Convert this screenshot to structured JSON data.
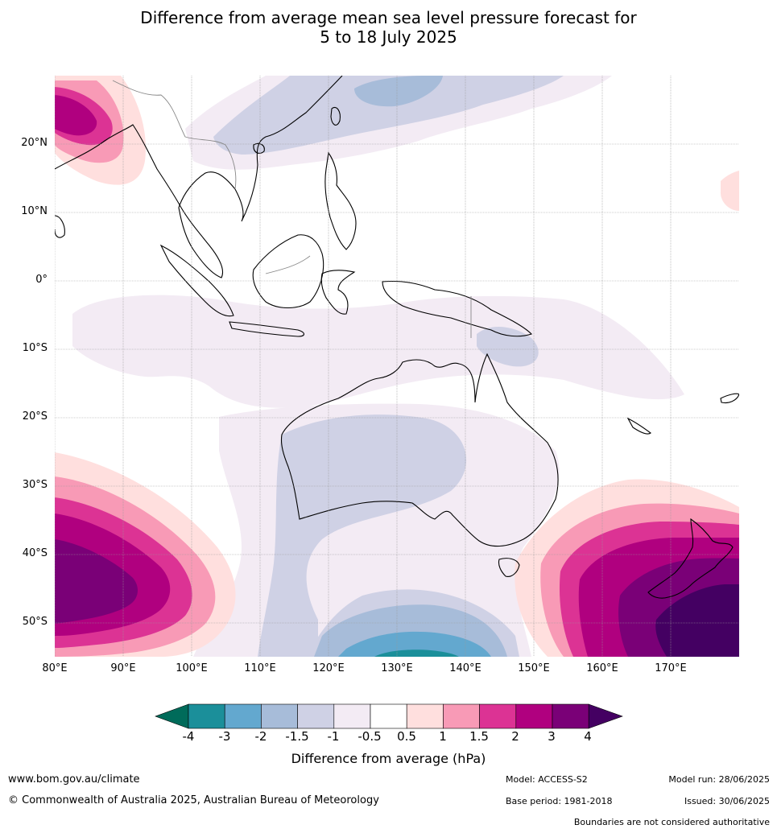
{
  "title": {
    "line1": "Difference from average mean sea level pressure forecast for",
    "line2": "5 to 18 July 2025"
  },
  "axes": {
    "lat_labels": [
      "20°N",
      "10°N",
      "0°",
      "10°S",
      "20°S",
      "30°S",
      "40°S",
      "50°S"
    ],
    "lon_labels": [
      "80°E",
      "90°E",
      "100°E",
      "110°E",
      "120°E",
      "130°E",
      "140°E",
      "150°E",
      "160°E",
      "170°E"
    ]
  },
  "colorbar": {
    "title": "Difference from average (hPa)",
    "tick_labels": [
      "-4",
      "-3",
      "-2",
      "-1.5",
      "-1",
      "-0.5",
      "0.5",
      "1",
      "1.5",
      "2",
      "3",
      "4"
    ],
    "colors": [
      "#006b5a",
      "#1b8f9a",
      "#63a8cf",
      "#a7bcd9",
      "#cfd1e5",
      "#f3ebf4",
      "#ffffff",
      "#ffdfde",
      "#f89ab6",
      "#dc3394",
      "#b0007f",
      "#7a0077",
      "#440062"
    ]
  },
  "footer": {
    "website": "www.bom.gov.au/climate",
    "copyright": "© Commonwealth of Australia 2025, Australian Bureau of Meteorology",
    "model": "Model: ACCESS-S2",
    "model_run": "Model run: 28/06/2025",
    "base_period": "Base period: 1981-2018",
    "issued": "Issued: 30/06/2025",
    "disclaimer": "Boundaries are not considered authoritative"
  }
}
